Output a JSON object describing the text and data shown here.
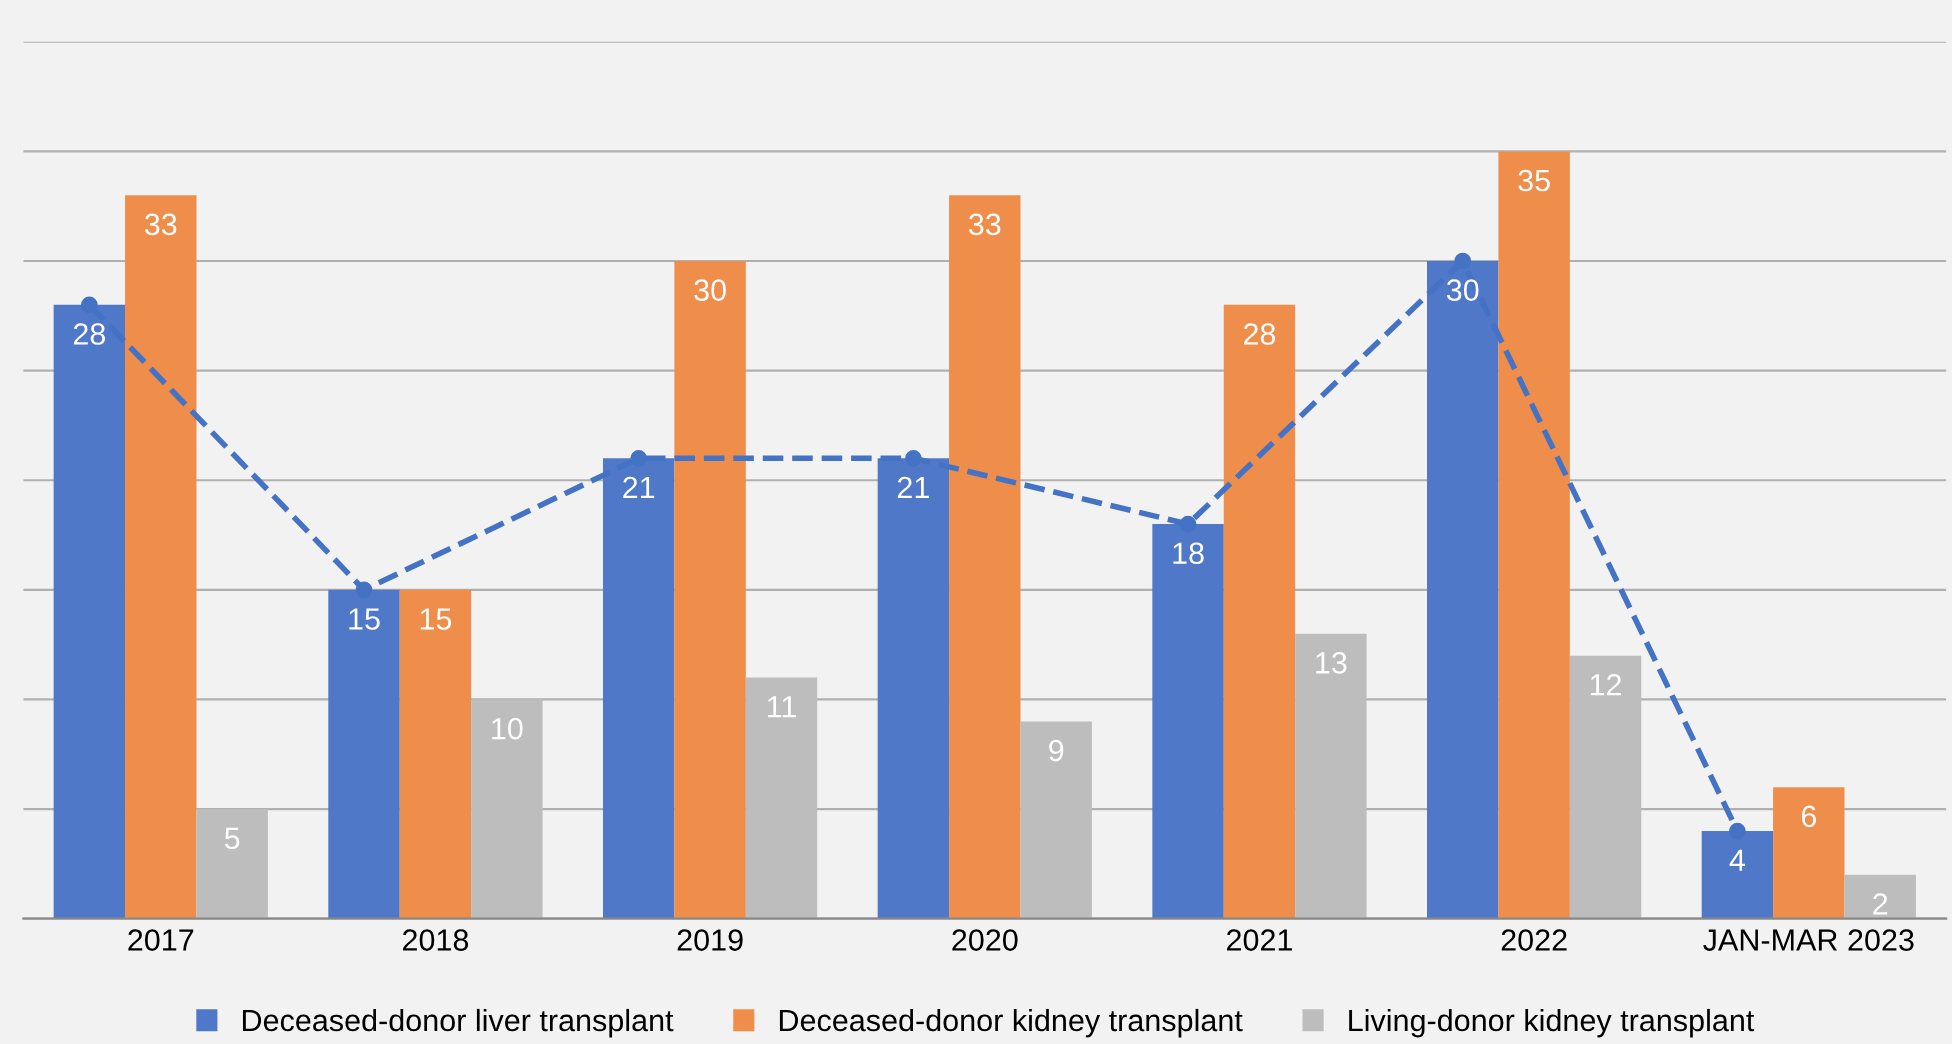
{
  "chart_data": {
    "type": "bar",
    "categories": [
      "2017",
      "2018",
      "2019",
      "2020",
      "2021",
      "2022",
      "JAN-MAR 2023"
    ],
    "series": [
      {
        "name": "Deceased-donor liver transplant",
        "color": "#4f78c8",
        "values": [
          28,
          15,
          21,
          21,
          18,
          30,
          4
        ],
        "value_labels": [
          "28",
          "15",
          "21",
          "21",
          "18",
          "30",
          "4"
        ]
      },
      {
        "name": "Deceased-donor kidney transplant",
        "color": "#ef8d4b",
        "values": [
          33,
          15,
          30,
          33,
          28,
          35,
          6
        ],
        "value_labels": [
          "33",
          "15",
          "30",
          "33",
          "28",
          "35",
          "6"
        ]
      },
      {
        "name": "Living-donor kidney transplant",
        "color": "#bdbdbd",
        "values": [
          5,
          10,
          11,
          9,
          13,
          12,
          2
        ],
        "value_labels": [
          "5",
          "10",
          "11",
          "9",
          "13",
          "12",
          "2"
        ]
      },
      {
        "type": "line",
        "color": "#4472c4",
        "values": [
          28,
          15,
          21,
          21,
          18,
          30,
          4
        ],
        "line_style": "dashed",
        "marker": "circle"
      }
    ],
    "ylim": [
      0,
      40
    ],
    "yticks": [
      {
        "value": 0,
        "label": null
      },
      {
        "value": 5,
        "label": null
      },
      {
        "value": 10,
        "label": null
      },
      {
        "value": 15,
        "label": null
      },
      {
        "value": 20,
        "label": null
      },
      {
        "value": 25,
        "label": null
      },
      {
        "value": 30,
        "label": null
      },
      {
        "value": 35,
        "label": null
      },
      {
        "value": 40,
        "label": null
      }
    ],
    "tick_labels": "x",
    "grid": "y",
    "legend": "bottom"
  }
}
